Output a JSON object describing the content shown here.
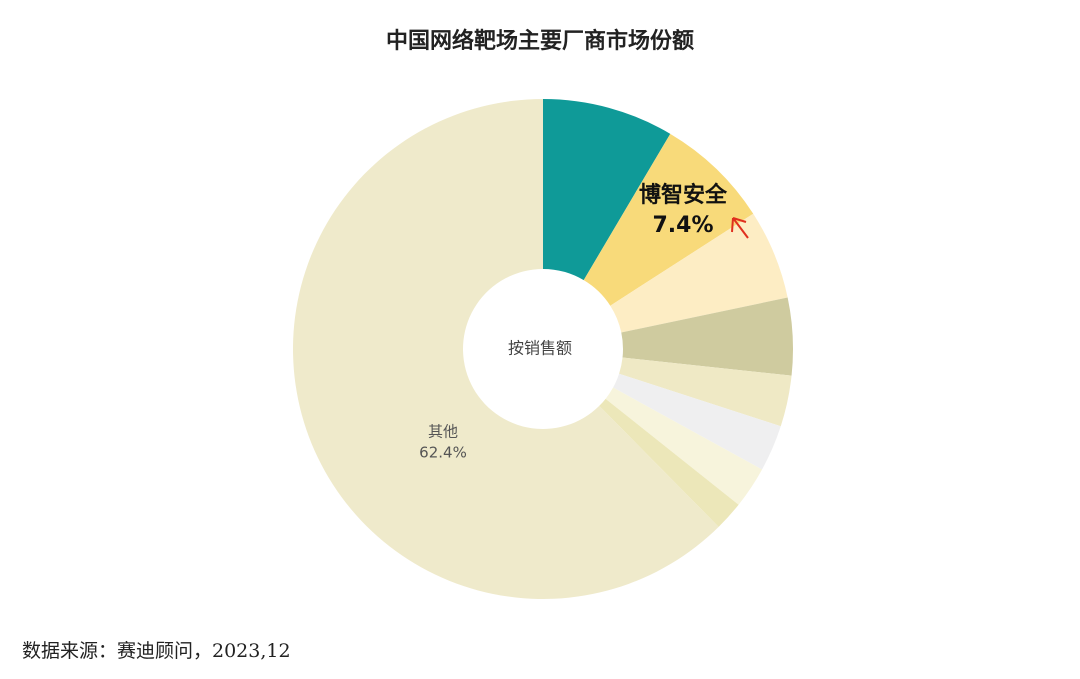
{
  "chart_data": {
    "type": "pie",
    "title": "中国网络靶场主要厂商市场份额",
    "center_label": "按销售额",
    "source": "数据来源：赛迪顾问，2023,12",
    "categories": [
      null,
      "博智安全",
      null,
      null,
      null,
      null,
      null,
      null,
      "其他"
    ],
    "values": [
      8.5,
      7.4,
      5.8,
      5.0,
      3.3,
      3.0,
      2.7,
      1.9,
      62.4
    ],
    "value_labels": [
      null,
      "7.4%",
      null,
      null,
      null,
      null,
      null,
      null,
      "62.4%"
    ],
    "colors": [
      "#0f9a98",
      "#f8da7a",
      "#fdedc4",
      "#cfcb9f",
      "#efe9c5",
      "#efeff0",
      "#f7f4dc",
      "#ece7b9",
      "#efeacb"
    ]
  }
}
